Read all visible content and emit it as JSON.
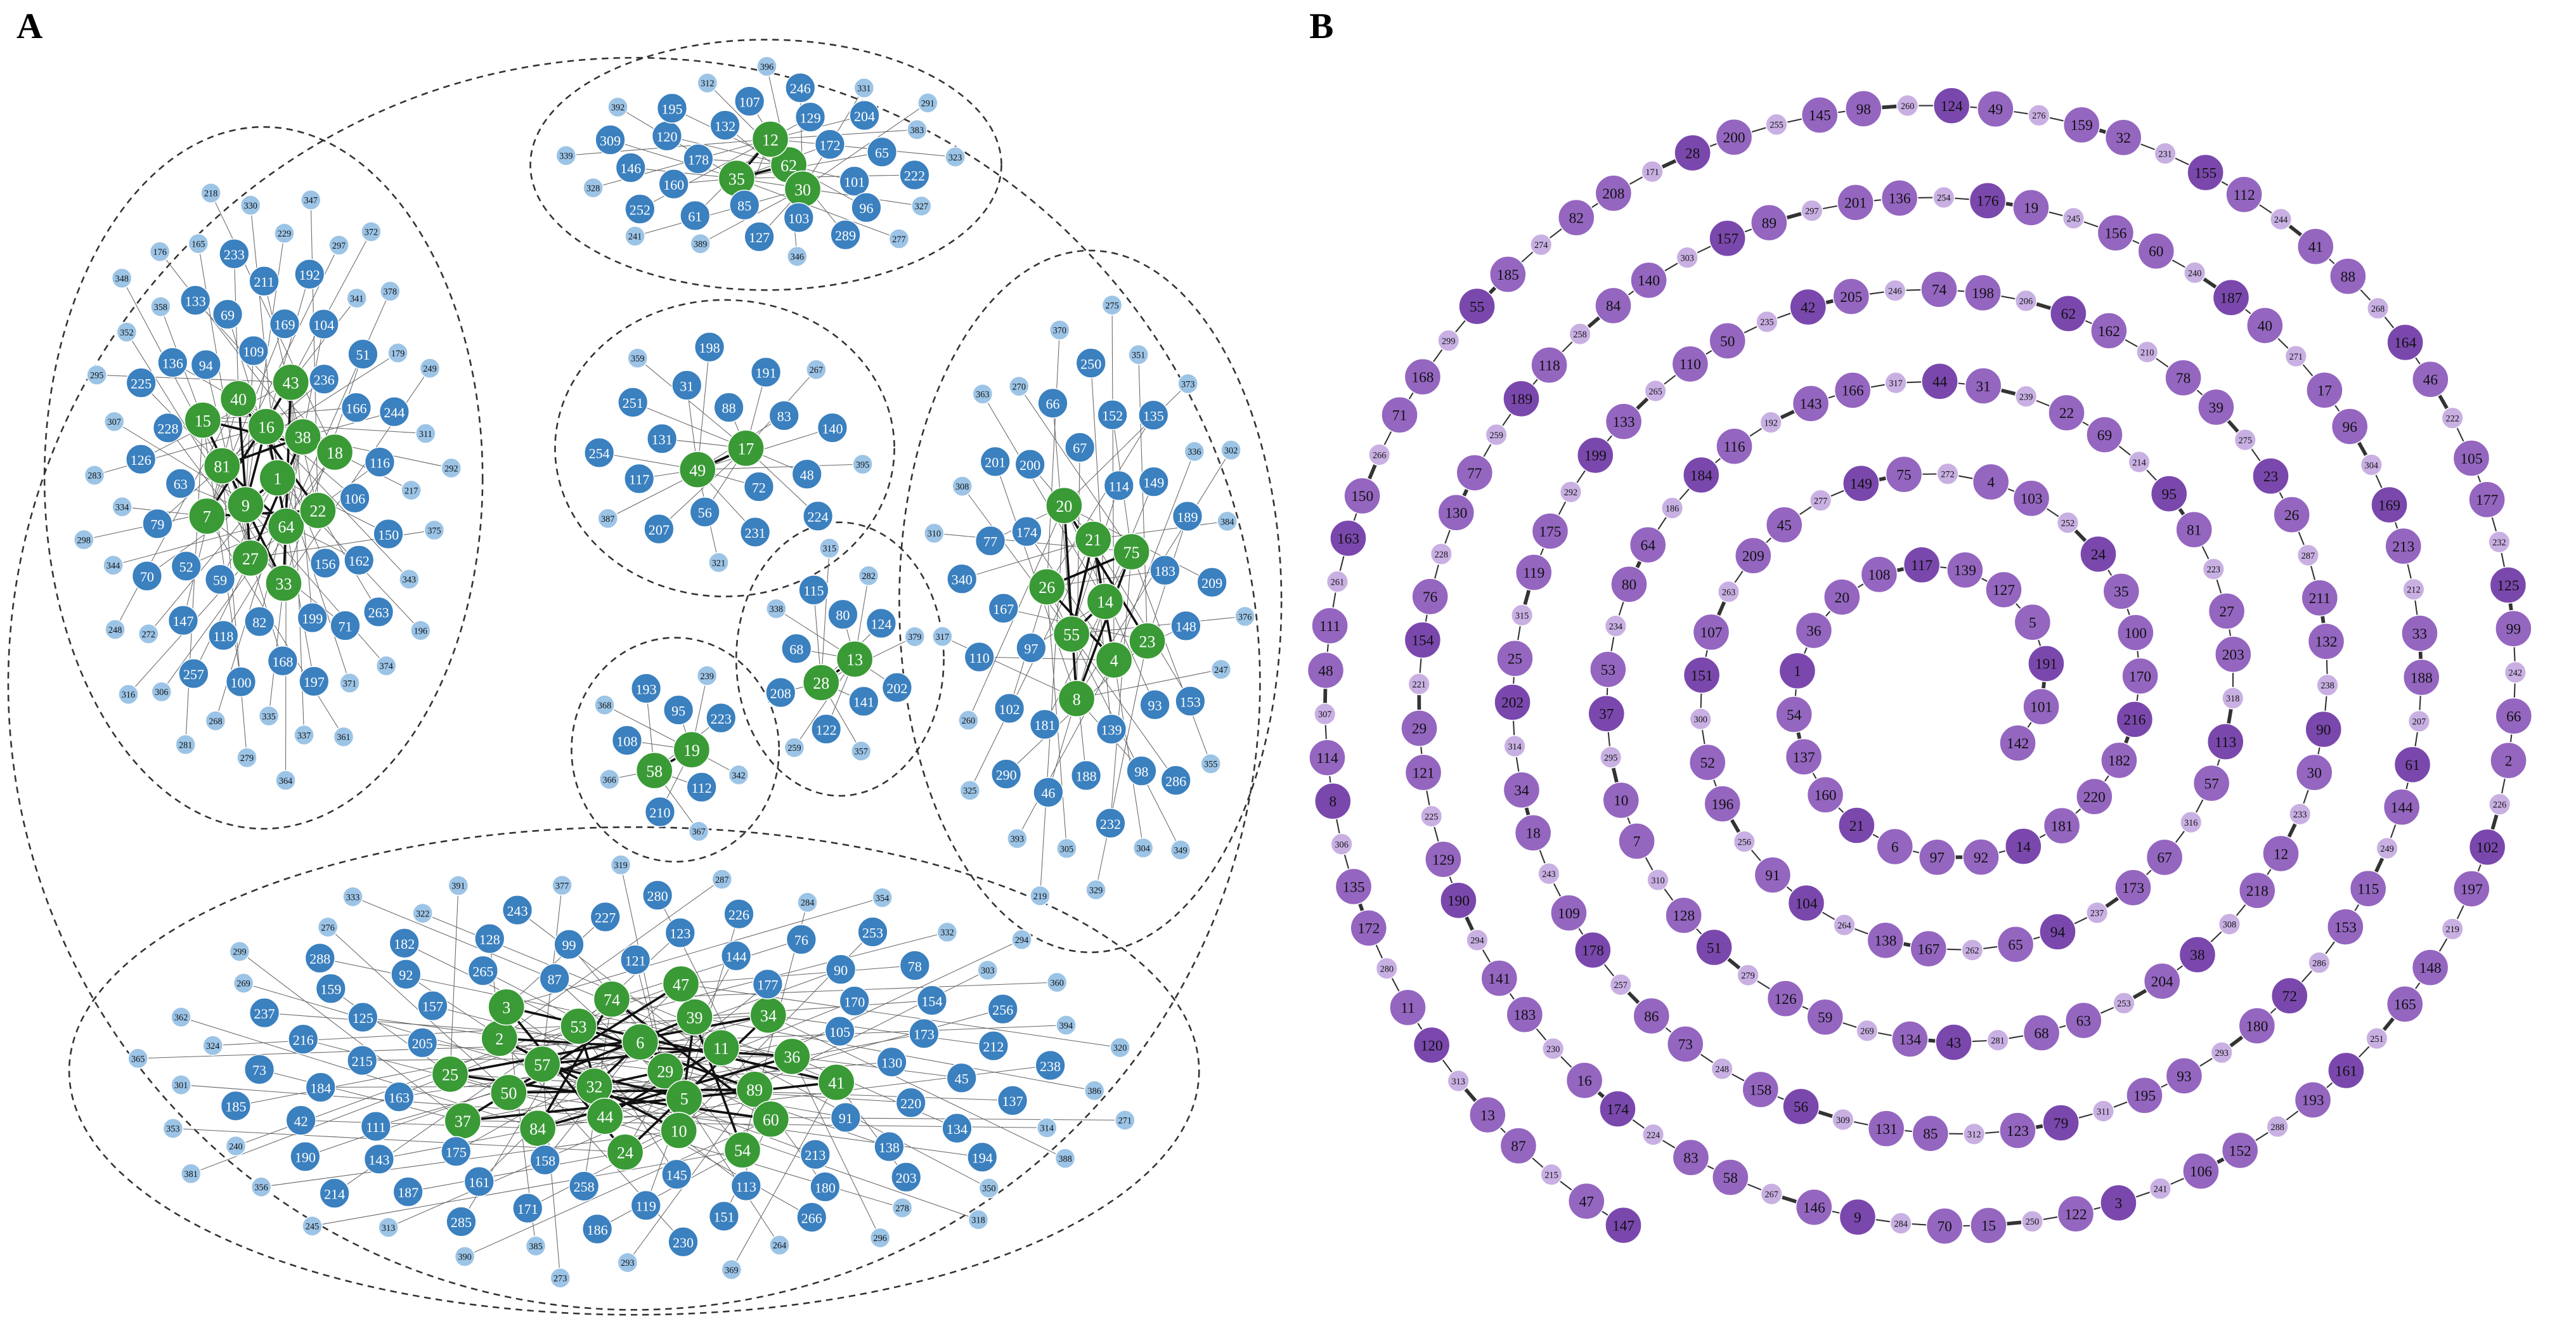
{
  "panel_a": {
    "label": "A",
    "hub_color": "#3a9a36",
    "node_color": "#3b80bf",
    "minor_color": "#9cc4e6",
    "clusters": [
      {
        "hubs": [
          1,
          9,
          16,
          64,
          81,
          38,
          27,
          40,
          22,
          7,
          43,
          33,
          15,
          18
        ],
        "nodes": [
          59,
          109,
          156,
          63,
          236,
          82,
          94,
          106,
          52,
          169,
          199,
          228,
          166,
          118,
          69,
          162,
          79,
          104,
          168,
          136,
          116,
          147,
          211,
          71,
          126,
          51,
          100,
          133,
          150,
          70,
          192,
          197,
          225,
          244,
          257,
          233,
          263
        ],
        "minor": [
          334,
          341,
          335,
          358,
          217,
          272,
          229,
          371,
          307,
          179,
          268,
          165,
          343,
          344,
          297,
          337,
          352,
          311,
          306,
          330,
          374,
          283,
          378,
          279,
          176,
          375,
          248,
          347,
          361,
          295,
          249,
          281,
          218,
          196,
          298,
          372,
          364,
          348,
          292,
          316
        ]
      },
      {
        "hubs": [
          62,
          35,
          12,
          30
        ],
        "nodes": [
          178,
          172,
          85,
          132,
          101,
          160,
          129,
          103,
          120,
          65,
          61,
          107,
          96,
          146,
          204,
          127,
          195,
          222,
          252,
          246,
          289,
          309
        ],
        "minor": [
          383,
          389,
          312,
          327,
          328,
          331,
          346,
          392,
          323,
          241,
          396,
          277,
          339,
          291
        ]
      },
      {
        "hubs": [
          17,
          49
        ],
        "nodes": [
          88,
          72,
          131,
          83,
          56,
          31,
          48,
          117,
          191,
          231,
          251,
          140,
          207,
          198,
          224,
          254
        ],
        "minor": [
          267,
          321,
          359,
          395,
          387
        ]
      },
      {
        "hubs": [
          19,
          58
        ],
        "nodes": [
          95,
          112,
          108,
          223,
          210,
          193
        ],
        "minor": [
          342,
          366,
          239,
          367,
          368
        ]
      },
      {
        "hubs": [
          13,
          28
        ],
        "nodes": [
          80,
          141,
          68,
          124,
          122,
          115,
          202,
          208
        ],
        "minor": [
          282,
          357,
          338,
          379,
          259,
          315
        ]
      },
      {
        "hubs": [
          14,
          55,
          21,
          4,
          26,
          75,
          8,
          20,
          23
        ],
        "nodes": [
          97,
          114,
          139,
          174,
          183,
          181,
          67,
          93,
          167,
          149,
          188,
          200,
          148,
          102,
          152,
          98,
          77,
          189,
          46,
          66,
          153,
          110,
          135,
          232,
          201,
          209,
          290,
          250,
          286,
          340
        ],
        "minor": [
          336,
          305,
          270,
          247,
          260,
          351,
          304,
          308,
          384,
          393,
          370,
          355,
          317,
          373,
          329,
          363,
          376,
          325,
          275,
          349,
          310,
          302,
          219
        ]
      },
      {
        "hubs": [
          29,
          32,
          6,
          5,
          57,
          11,
          44,
          53,
          89,
          50,
          39,
          10,
          2,
          36,
          84,
          74,
          60,
          25,
          34,
          24,
          3,
          41,
          37,
          47,
          54
        ],
        "nodes": [
          205,
          105,
          158,
          87,
          91,
          163,
          177,
          145,
          157,
          130,
          175,
          121,
          213,
          215,
          170,
          258,
          265,
          220,
          111,
          144,
          113,
          125,
          173,
          161,
          99,
          138,
          184,
          90,
          119,
          92,
          45,
          143,
          123,
          180,
          216,
          154,
          171,
          128,
          134,
          42,
          76,
          151,
          159,
          212,
          187,
          227,
          203,
          73,
          78,
          186,
          182,
          137,
          190,
          226,
          266,
          237,
          256,
          285,
          243,
          194,
          185,
          253,
          230,
          288,
          238,
          214,
          280
        ],
        "minor": [
          278,
          324,
          303,
          385,
          322,
          314,
          240,
          284,
          264,
          269,
          394,
          313,
          377,
          350,
          301,
          332,
          293,
          276,
          386,
          356,
          287,
          296,
          362,
          360,
          390,
          391,
          388,
          353,
          354,
          369,
          299,
          320,
          245,
          319,
          318,
          365,
          294,
          273,
          333,
          271,
          381
        ]
      }
    ]
  },
  "panel_b": {
    "label": "B",
    "node_color": "#9466c0",
    "dark_color": "#7a48ad",
    "minor_color": "#c9b0e3",
    "nodes": [
      147,
      47,
      87,
      13,
      120,
      11,
      172,
      135,
      8,
      114,
      48,
      111,
      163,
      150,
      71,
      168,
      55,
      185,
      82,
      208,
      28,
      200,
      145,
      98,
      124,
      49,
      159,
      32,
      155,
      112,
      41,
      88,
      164,
      46,
      105,
      177,
      125,
      99,
      66,
      2,
      102,
      197,
      148,
      165,
      161,
      193,
      152,
      106,
      3,
      122,
      15,
      70,
      9,
      146,
      58,
      83,
      174,
      16,
      183,
      141,
      190,
      129,
      121,
      29,
      154,
      76,
      130,
      77,
      189,
      118,
      84,
      140,
      157,
      89,
      201,
      136,
      176,
      19,
      156,
      60,
      187,
      40,
      17,
      96,
      169,
      213,
      33,
      188,
      61,
      144,
      115,
      153,
      72,
      180,
      93,
      195,
      79,
      123,
      85,
      131,
      56,
      158,
      73,
      86,
      178,
      109,
      18,
      34,
      202,
      25,
      119,
      175,
      199,
      133,
      110,
      50,
      42,
      205,
      74,
      198,
      62,
      162,
      78,
      39,
      23,
      26,
      211,
      132,
      90,
      30,
      12,
      218,
      38,
      204,
      63,
      68,
      43,
      134,
      59,
      126,
      51,
      128,
      7,
      10,
      37,
      53,
      80,
      64,
      184,
      116,
      143,
      166,
      44,
      31,
      22,
      69,
      95,
      81,
      27,
      203,
      113,
      57,
      67,
      173,
      94,
      65,
      167,
      138,
      104,
      91,
      196,
      52,
      151,
      107,
      209,
      45,
      149,
      75,
      4,
      103,
      24,
      35,
      100,
      170,
      216,
      182,
      220,
      181,
      14,
      92,
      97,
      6,
      21,
      160,
      137,
      54,
      1,
      36,
      20,
      108,
      117,
      139,
      127,
      5,
      191,
      101,
      142
    ],
    "minor": [
      215,
      313,
      280,
      306,
      307,
      261,
      266,
      299,
      274,
      171,
      255,
      260,
      276,
      231,
      244,
      268,
      222,
      232,
      242,
      226,
      219,
      251,
      288,
      241,
      250,
      284,
      267,
      224,
      230,
      294,
      225,
      221,
      228,
      259,
      258,
      303,
      297,
      254,
      245,
      240,
      271,
      304,
      212,
      207,
      249,
      286,
      293,
      311,
      312,
      309,
      248,
      257,
      243,
      314,
      315,
      292,
      265,
      235,
      246,
      206,
      210,
      275,
      287,
      238,
      233,
      308,
      253,
      281,
      269,
      279,
      310,
      295,
      234,
      186,
      192,
      317,
      239,
      214,
      223,
      318,
      316,
      237,
      262,
      264,
      256,
      300,
      263,
      277,
      272,
      252
    ]
  }
}
